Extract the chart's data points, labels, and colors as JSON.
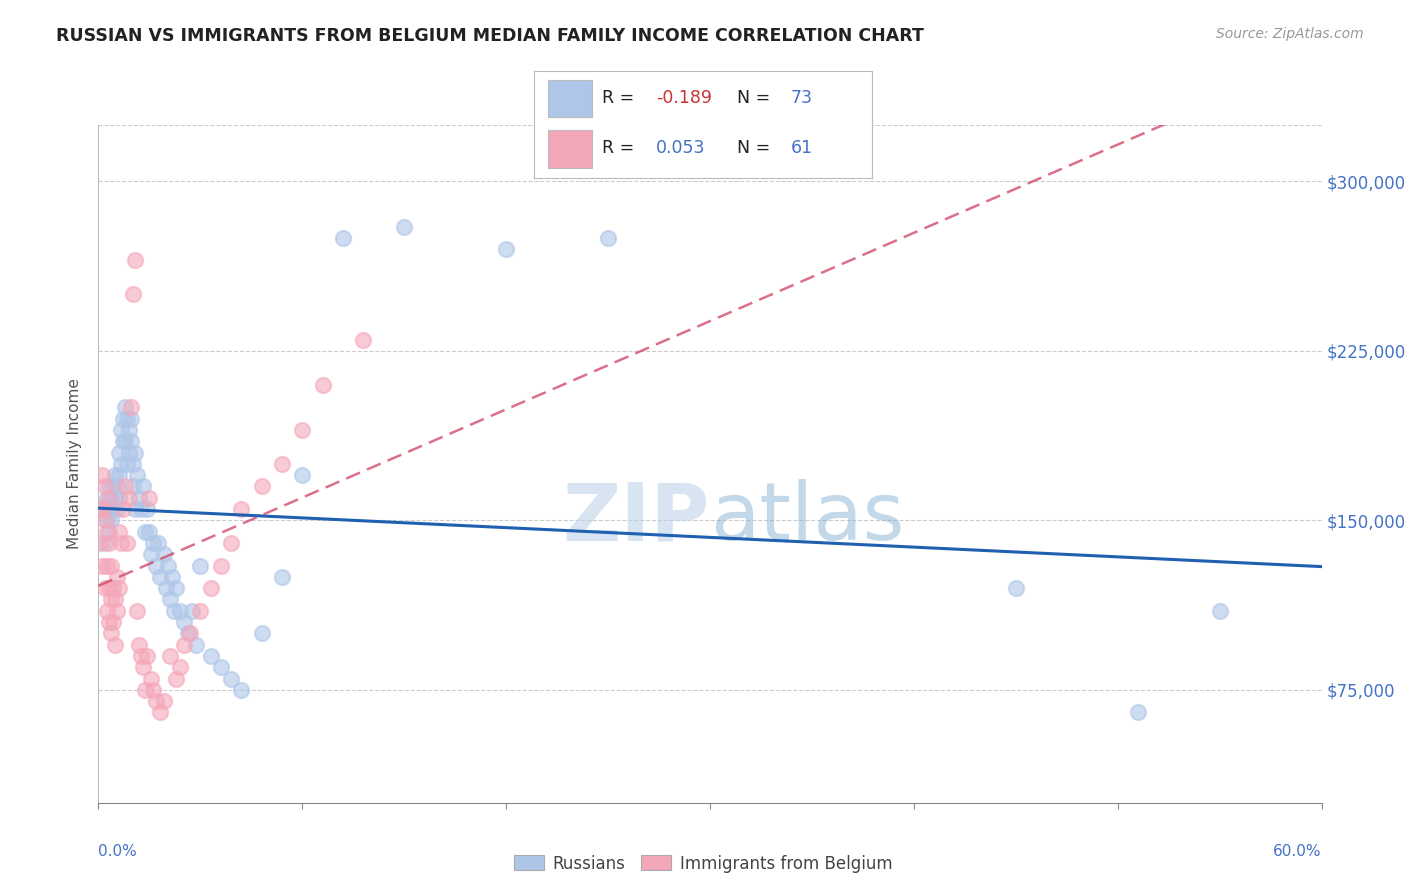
{
  "title": "RUSSIAN VS IMMIGRANTS FROM BELGIUM MEDIAN FAMILY INCOME CORRELATION CHART",
  "source": "Source: ZipAtlas.com",
  "ylabel": "Median Family Income",
  "watermark_zip": "ZIP",
  "watermark_atlas": "atlas",
  "russians_R": -0.189,
  "russians_N": 73,
  "belgium_R": 0.053,
  "belgium_N": 61,
  "xlim": [
    0.0,
    0.6
  ],
  "ylim": [
    25000,
    325000
  ],
  "yticks": [
    75000,
    150000,
    225000,
    300000
  ],
  "ytick_labels": [
    "$75,000",
    "$150,000",
    "$225,000",
    "$300,000"
  ],
  "blue_color": "#aec6e8",
  "pink_color": "#f4a7b9",
  "trendline_blue": "#2060b0",
  "trendline_pink": "#d04060",
  "title_color": "#222222",
  "axis_label_color": "#4472c4",
  "legend_black": "#222222",
  "legend_blue": "#4472c4",
  "legend_red": "#cc3333",
  "russians_x": [
    0.002,
    0.003,
    0.004,
    0.004,
    0.005,
    0.005,
    0.005,
    0.006,
    0.006,
    0.007,
    0.007,
    0.008,
    0.008,
    0.009,
    0.009,
    0.01,
    0.01,
    0.01,
    0.011,
    0.011,
    0.012,
    0.012,
    0.013,
    0.013,
    0.014,
    0.014,
    0.015,
    0.015,
    0.016,
    0.016,
    0.017,
    0.017,
    0.018,
    0.018,
    0.019,
    0.02,
    0.021,
    0.022,
    0.023,
    0.024,
    0.025,
    0.026,
    0.027,
    0.028,
    0.029,
    0.03,
    0.032,
    0.033,
    0.034,
    0.035,
    0.036,
    0.037,
    0.038,
    0.04,
    0.042,
    0.044,
    0.046,
    0.048,
    0.05,
    0.055,
    0.06,
    0.065,
    0.07,
    0.08,
    0.09,
    0.1,
    0.12,
    0.15,
    0.2,
    0.25,
    0.45,
    0.51,
    0.55
  ],
  "russians_y": [
    155000,
    140000,
    160000,
    150000,
    165000,
    155000,
    145000,
    160000,
    150000,
    165000,
    155000,
    170000,
    160000,
    165000,
    155000,
    170000,
    160000,
    180000,
    190000,
    175000,
    195000,
    185000,
    200000,
    185000,
    195000,
    175000,
    190000,
    180000,
    195000,
    185000,
    175000,
    165000,
    180000,
    155000,
    170000,
    160000,
    155000,
    165000,
    145000,
    155000,
    145000,
    135000,
    140000,
    130000,
    140000,
    125000,
    135000,
    120000,
    130000,
    115000,
    125000,
    110000,
    120000,
    110000,
    105000,
    100000,
    110000,
    95000,
    130000,
    90000,
    85000,
    80000,
    75000,
    100000,
    125000,
    170000,
    275000,
    280000,
    270000,
    275000,
    120000,
    65000,
    110000
  ],
  "belgium_x": [
    0.001,
    0.001,
    0.002,
    0.002,
    0.002,
    0.003,
    0.003,
    0.003,
    0.004,
    0.004,
    0.004,
    0.005,
    0.005,
    0.005,
    0.005,
    0.006,
    0.006,
    0.006,
    0.007,
    0.007,
    0.008,
    0.008,
    0.009,
    0.009,
    0.01,
    0.01,
    0.011,
    0.012,
    0.013,
    0.014,
    0.015,
    0.016,
    0.017,
    0.018,
    0.019,
    0.02,
    0.021,
    0.022,
    0.023,
    0.024,
    0.025,
    0.026,
    0.027,
    0.028,
    0.03,
    0.032,
    0.035,
    0.038,
    0.04,
    0.042,
    0.045,
    0.05,
    0.055,
    0.06,
    0.065,
    0.07,
    0.08,
    0.09,
    0.1,
    0.11,
    0.13
  ],
  "belgium_y": [
    155000,
    140000,
    170000,
    155000,
    130000,
    165000,
    150000,
    120000,
    145000,
    130000,
    110000,
    160000,
    140000,
    120000,
    105000,
    130000,
    115000,
    100000,
    120000,
    105000,
    115000,
    95000,
    110000,
    125000,
    145000,
    120000,
    140000,
    155000,
    165000,
    140000,
    160000,
    200000,
    250000,
    265000,
    110000,
    95000,
    90000,
    85000,
    75000,
    90000,
    160000,
    80000,
    75000,
    70000,
    65000,
    70000,
    90000,
    80000,
    85000,
    95000,
    100000,
    110000,
    120000,
    130000,
    140000,
    155000,
    165000,
    175000,
    190000,
    210000,
    230000
  ]
}
